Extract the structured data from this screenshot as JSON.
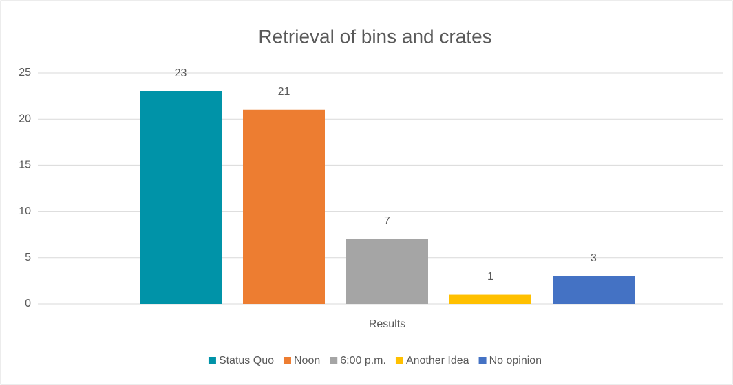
{
  "chart_data": {
    "type": "bar",
    "title": "Retrieval of bins and crates",
    "categories": [
      "Results"
    ],
    "series": [
      {
        "name": "Status Quo",
        "color": "#0093a8",
        "values": [
          23
        ]
      },
      {
        "name": "Noon",
        "color": "#ed7d31",
        "values": [
          21
        ]
      },
      {
        "name": "6:00 p.m.",
        "color": "#a5a5a5",
        "values": [
          7
        ]
      },
      {
        "name": "Another Idea",
        "color": "#ffc000",
        "values": [
          1
        ]
      },
      {
        "name": "No opinion",
        "color": "#4472c4",
        "values": [
          3
        ]
      }
    ],
    "ylim": [
      0,
      25
    ],
    "yticks": [
      0,
      5,
      10,
      15,
      20,
      25
    ],
    "grid": true,
    "legend": "bottom"
  }
}
